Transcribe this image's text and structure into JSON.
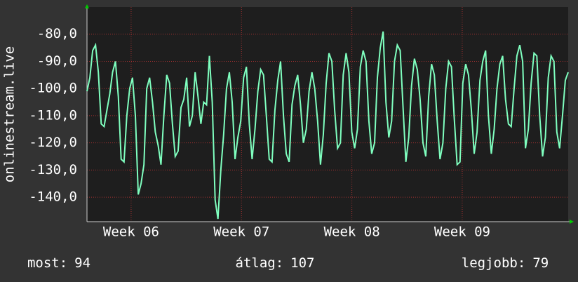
{
  "chart_data": {
    "type": "line",
    "y_label": "onlinestream.live",
    "ylim": [
      -149,
      -70
    ],
    "yticks": [
      {
        "value": -80,
        "label": "-80,0"
      },
      {
        "value": -90,
        "label": "-90,0"
      },
      {
        "value": -100,
        "label": "-100,0"
      },
      {
        "value": -110,
        "label": "-110,0"
      },
      {
        "value": -120,
        "label": "-120,0"
      },
      {
        "value": -130,
        "label": "-130,0"
      },
      {
        "value": -140,
        "label": "-140,0"
      }
    ],
    "xlim": [
      5.6,
      9.96
    ],
    "xticks": [
      {
        "value": 6,
        "label": "Week 06"
      },
      {
        "value": 7,
        "label": "Week 07"
      },
      {
        "value": 8,
        "label": "Week 08"
      },
      {
        "value": 9,
        "label": "Week 09"
      }
    ],
    "grid": true,
    "series": [
      {
        "name": "onlinestream.live",
        "color": "#7fffbf",
        "values": [
          -101,
          -96,
          -86,
          -84,
          -94,
          -113,
          -114,
          -108,
          -102,
          -94,
          -90,
          -103,
          -126,
          -127,
          -110,
          -100,
          -96,
          -110,
          -139,
          -135,
          -128,
          -100,
          -96,
          -105,
          -116,
          -121,
          -128,
          -110,
          -95,
          -98,
          -113,
          -125,
          -123,
          -107,
          -104,
          -96,
          -114,
          -110,
          -94,
          -103,
          -113,
          -105,
          -106,
          -88,
          -105,
          -141,
          -148,
          -130,
          -117,
          -100,
          -94,
          -105,
          -126,
          -118,
          -112,
          -96,
          -92,
          -113,
          -126,
          -115,
          -101,
          -93,
          -95,
          -110,
          -126,
          -127,
          -108,
          -97,
          -90,
          -110,
          -124,
          -127,
          -106,
          -99,
          -95,
          -106,
          -120,
          -115,
          -101,
          -94,
          -100,
          -112,
          -128,
          -117,
          -98,
          -87,
          -90,
          -108,
          -122,
          -120,
          -95,
          -87,
          -94,
          -116,
          -122,
          -115,
          -92,
          -86,
          -90,
          -112,
          -124,
          -120,
          -96,
          -85,
          -79,
          -105,
          -118,
          -112,
          -90,
          -84,
          -86,
          -107,
          -127,
          -118,
          -99,
          -89,
          -93,
          -104,
          -120,
          -125,
          -103,
          -91,
          -95,
          -112,
          -126,
          -120,
          -100,
          -90,
          -92,
          -111,
          -128,
          -127,
          -98,
          -91,
          -95,
          -108,
          -124,
          -116,
          -97,
          -90,
          -86,
          -110,
          -124,
          -115,
          -100,
          -91,
          -88,
          -104,
          -113,
          -114,
          -100,
          -88,
          -84,
          -90,
          -122,
          -115,
          -98,
          -87,
          -88,
          -110,
          -125,
          -118,
          -96,
          -88,
          -90,
          -116,
          -122,
          -110,
          -97,
          -94
        ]
      }
    ],
    "stats": [
      {
        "label": "most:",
        "value": 94
      },
      {
        "label": "átlag:",
        "value": 107
      },
      {
        "label": "legjobb:",
        "value": 79
      }
    ]
  }
}
